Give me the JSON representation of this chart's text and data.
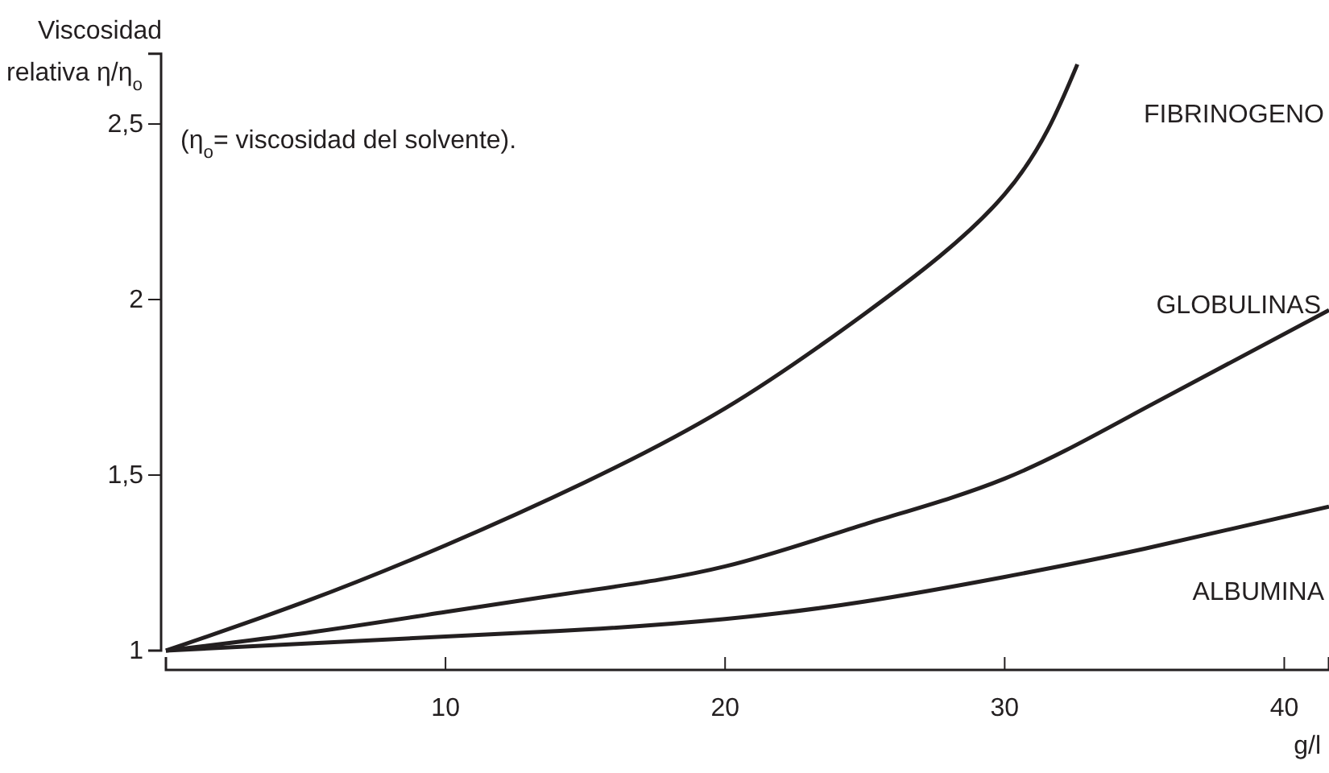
{
  "chart_data": {
    "type": "line",
    "ylabel": "Viscosidad relativa η/η$_{o}$",
    "xlabel": "g/l",
    "annotations": [
      "(η$_{o}$= viscosidad del solvente)."
    ],
    "x": [
      0,
      5,
      10,
      15,
      20,
      25,
      30,
      32.6
    ],
    "series": [
      {
        "name": "FIBRINOGENO",
        "color": "#231f20",
        "values": [
          1,
          1.14,
          1.3,
          1.48,
          1.69,
          1.96,
          2.3,
          2.67
        ]
      },
      {
        "name": "GLOBULINAS",
        "color": "#231f20",
        "x": [
          0,
          5,
          10,
          15,
          20,
          25,
          30,
          35,
          41.6
        ],
        "values": [
          1,
          1.05,
          1.11,
          1.17,
          1.24,
          1.36,
          1.49,
          1.69,
          1.97
        ]
      },
      {
        "name": "ALBUMINA",
        "color": "#231f20",
        "x": [
          0,
          10,
          15,
          20,
          25,
          30,
          35,
          41.6
        ],
        "values": [
          1,
          1.04,
          1.06,
          1.09,
          1.14,
          1.21,
          1.29,
          1.41
        ]
      }
    ],
    "xlim": [
      0,
      41.6
    ],
    "xticks": [
      10,
      20,
      30,
      40
    ],
    "ylim": [
      1,
      2.7
    ],
    "yticks": [
      1,
      {
        "value": 1.5,
        "label": "1,5"
      },
      2,
      {
        "value": 2.5,
        "label": "2,5"
      }
    ],
    "grid": false,
    "marker": "none",
    "line_style": "solid"
  }
}
